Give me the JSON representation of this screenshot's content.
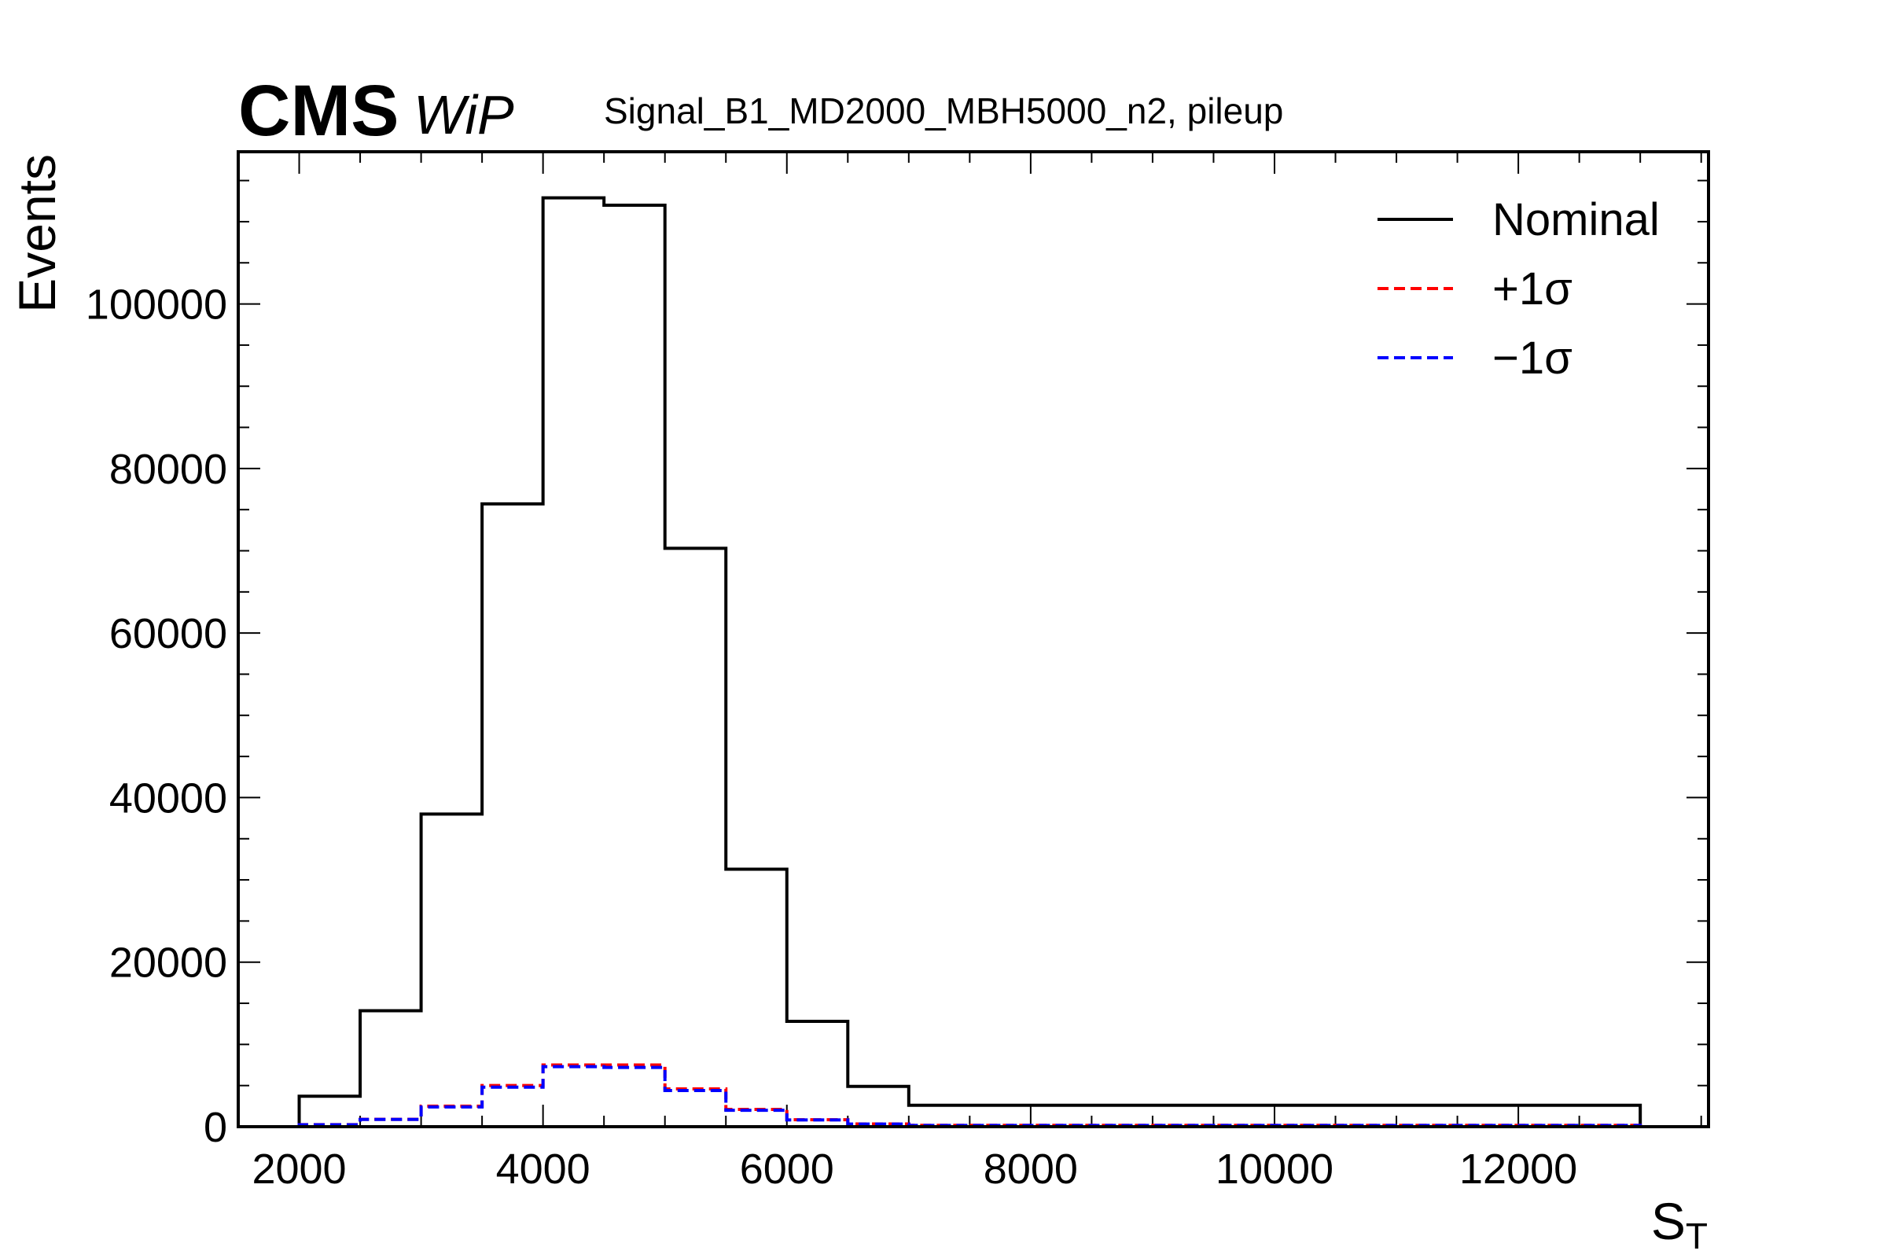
{
  "header": {
    "experiment": "CMS",
    "status": "WiP",
    "subtitle": "Signal_B1_MD2000_MBH5000_n2, pileup"
  },
  "chart_data": {
    "type": "histogram",
    "xlabel_main": "S",
    "xlabel_sub": "T",
    "ylabel": "Events",
    "xlim": [
      1500,
      13560
    ],
    "ylim": [
      0,
      118500
    ],
    "x_ticks": [
      2000,
      4000,
      6000,
      8000,
      10000,
      12000
    ],
    "y_ticks": [
      0,
      20000,
      40000,
      60000,
      80000,
      100000
    ],
    "bin_edges": [
      2000,
      2500,
      3000,
      3500,
      4000,
      4500,
      5000,
      5500,
      6000,
      6500,
      7000,
      13000
    ],
    "legend_position": "top-right",
    "series": [
      {
        "name": "Nominal",
        "color": "#000000",
        "linestyle": "solid",
        "values": [
          3700,
          14100,
          38000,
          75700,
          112900,
          112000,
          70300,
          31300,
          12800,
          4900,
          2600
        ]
      },
      {
        "name": "+1σ",
        "color": "#ff0000",
        "linestyle": "dashed",
        "values": [
          250,
          900,
          2500,
          5000,
          7500,
          7500,
          4600,
          2100,
          850,
          330,
          170
        ]
      },
      {
        "name": "−1σ",
        "color": "#0000ff",
        "linestyle": "dashed",
        "values": [
          240,
          880,
          2400,
          4800,
          7300,
          7200,
          4400,
          2000,
          820,
          320,
          160
        ]
      }
    ]
  }
}
